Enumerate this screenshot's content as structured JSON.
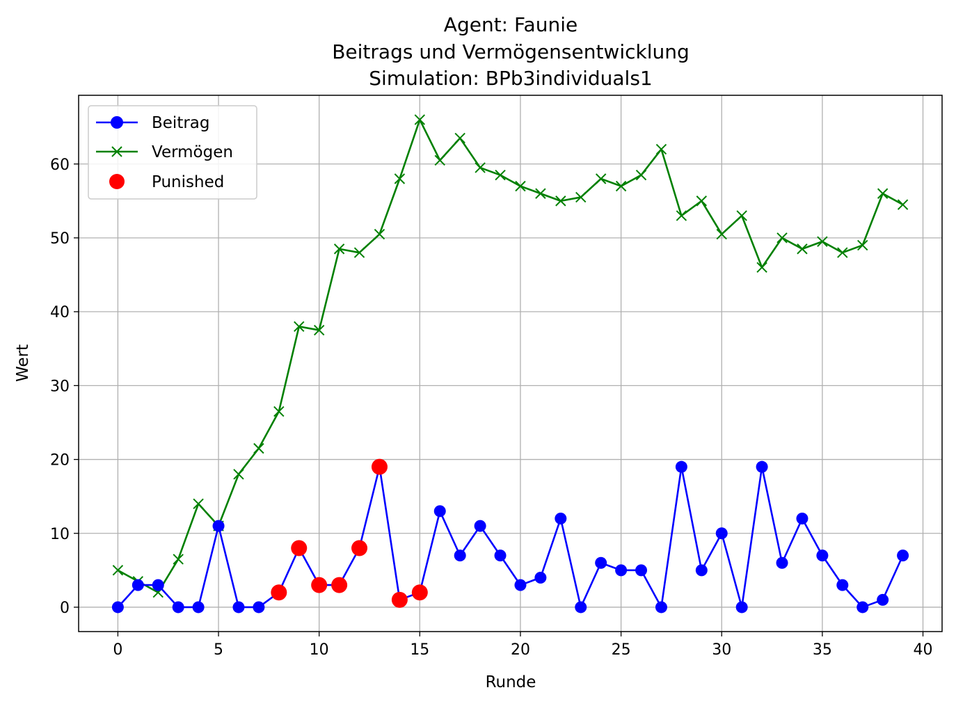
{
  "chart_data": {
    "type": "line",
    "title": [
      "Agent: Faunie",
      "Beitrags und Vermögensentwicklung",
      "Simulation: BPb3individuals1"
    ],
    "xlabel": "Runde",
    "ylabel": "Wert",
    "xlim": [
      -1.95,
      40.95
    ],
    "ylim": [
      -3.3,
      69.3
    ],
    "xticks": [
      0,
      5,
      10,
      15,
      20,
      25,
      30,
      35,
      40
    ],
    "yticks": [
      0,
      10,
      20,
      30,
      40,
      50,
      60
    ],
    "grid": true,
    "legend_position": "top-left",
    "x": [
      0,
      1,
      2,
      3,
      4,
      5,
      6,
      7,
      8,
      9,
      10,
      11,
      12,
      13,
      14,
      15,
      16,
      17,
      18,
      19,
      20,
      21,
      22,
      23,
      24,
      25,
      26,
      27,
      28,
      29,
      30,
      31,
      32,
      33,
      34,
      35,
      36,
      37,
      38,
      39
    ],
    "series": [
      {
        "name": "Beitrag",
        "color": "#0000ff",
        "marker": "circle",
        "values": [
          0,
          3,
          3,
          0,
          0,
          11,
          0,
          0,
          2,
          8,
          3,
          3,
          8,
          19,
          1,
          2,
          13,
          7,
          11,
          7,
          3,
          4,
          12,
          0,
          6,
          5,
          5,
          0,
          19,
          5,
          10,
          0,
          19,
          6,
          12,
          7,
          3,
          0,
          1,
          7
        ]
      },
      {
        "name": "Vermögen",
        "color": "#008000",
        "marker": "x",
        "values": [
          5,
          3.5,
          2,
          6.5,
          14,
          11,
          18,
          21.5,
          26.5,
          38,
          37.5,
          48.5,
          48,
          50.5,
          58,
          66,
          60.5,
          63.5,
          59.5,
          58.5,
          57,
          56,
          55,
          55.5,
          58,
          57,
          58.5,
          62,
          53,
          55,
          50.5,
          53,
          46,
          50,
          48.5,
          49.5,
          48,
          49,
          56,
          54.5
        ]
      },
      {
        "name": "Punished",
        "color": "#ff0000",
        "marker": "dot",
        "points": [
          [
            8,
            2
          ],
          [
            9,
            8
          ],
          [
            10,
            3
          ],
          [
            11,
            3
          ],
          [
            12,
            8
          ],
          [
            13,
            19
          ],
          [
            14,
            1
          ],
          [
            15,
            2
          ]
        ]
      }
    ]
  }
}
